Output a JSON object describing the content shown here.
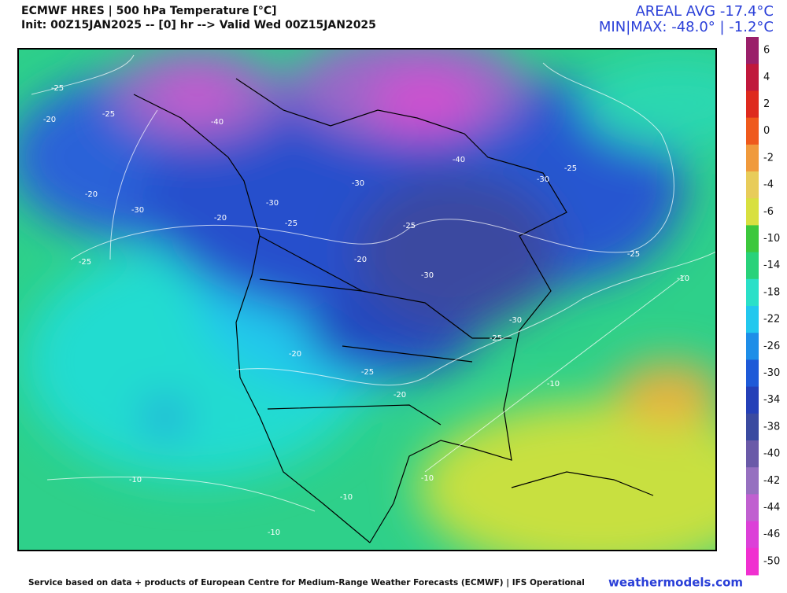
{
  "header": {
    "title": "ECMWF HRES | 500 hPa Temperature [°C]",
    "init": "Init: 00Z15JAN2025 -- [0] hr --> Valid Wed 00Z15JAN2025"
  },
  "stats": {
    "areal": "AREAL AVG -17.4°C",
    "minmax": "MIN|MAX: -48.0° | -1.2°C"
  },
  "colorbar": {
    "labels": [
      6,
      4,
      2,
      0,
      -2,
      -4,
      -6,
      -10,
      -14,
      -18,
      -22,
      -26,
      -30,
      -34,
      -38,
      -40,
      -42,
      -44,
      -46,
      -50
    ],
    "colors": [
      "#9a1f6a",
      "#c0183c",
      "#de2a1e",
      "#ef5a1c",
      "#f09a3c",
      "#e8cc5a",
      "#d8e040",
      "#3cc83c",
      "#28d27a",
      "#2ae0c8",
      "#22c8ee",
      "#1e8ee8",
      "#1e5ad8",
      "#2440b8",
      "#3a4aa0",
      "#6a5aa8",
      "#9670c0",
      "#c060d0",
      "#dc40d8",
      "#f030d0"
    ]
  },
  "contours": [
    -25,
    -20,
    -25,
    -20,
    -30,
    -25,
    -40,
    -20,
    -30,
    -25,
    -30,
    -25,
    -20,
    -30,
    -40,
    -30,
    -25,
    -25,
    -10,
    -30,
    -25,
    -25,
    -20,
    -20,
    -10,
    -10,
    -10,
    -10,
    -10
  ],
  "footer": {
    "credit": "Service based on data + products of European Centre for Medium-Range Weather Forecasts (ECMWF) | IFS Operational",
    "site": "weathermodels.com"
  }
}
